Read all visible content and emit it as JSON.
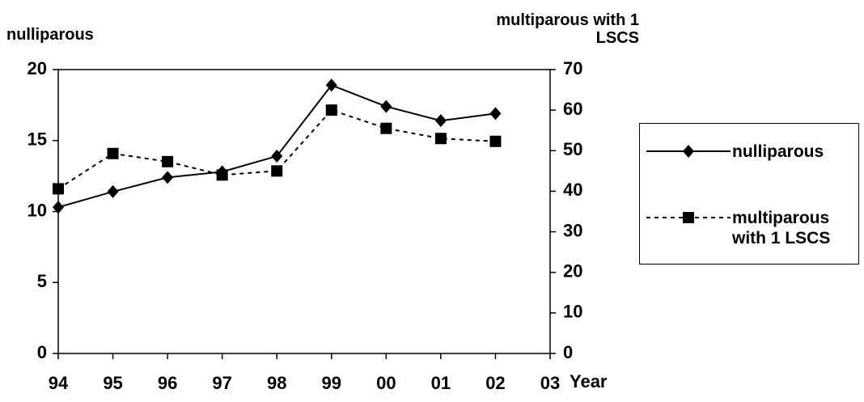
{
  "chart_data": {
    "type": "line",
    "y_label": "nulliparous",
    "y2_label": "multiparous with 1 LSCS",
    "x_label": "Year",
    "categories": [
      "94",
      "95",
      "96",
      "97",
      "98",
      "99",
      "00",
      "01",
      "02",
      "03"
    ],
    "series": [
      {
        "name": "nulliparous",
        "color": "#000000",
        "style": "solid",
        "marker": "diamond",
        "values": [
          10.3,
          11.4,
          12.4,
          12.8,
          13.9,
          18.9,
          17.4,
          16.4,
          16.9,
          null
        ]
      },
      {
        "name": "multiparous with 1 LSCS",
        "color": "#000000",
        "style": "dashed",
        "marker": "square",
        "axis": "y2",
        "values": [
          40.6,
          49.3,
          47.3,
          44,
          45,
          60,
          55.5,
          53,
          52.3,
          null
        ]
      }
    ],
    "ylim": [
      0,
      20
    ],
    "yticks": [
      0,
      5,
      10,
      15,
      20
    ],
    "y2lim": [
      0,
      70
    ],
    "y2ticks": [
      0,
      10,
      20,
      30,
      40,
      50,
      60,
      70
    ],
    "legend": "right"
  }
}
